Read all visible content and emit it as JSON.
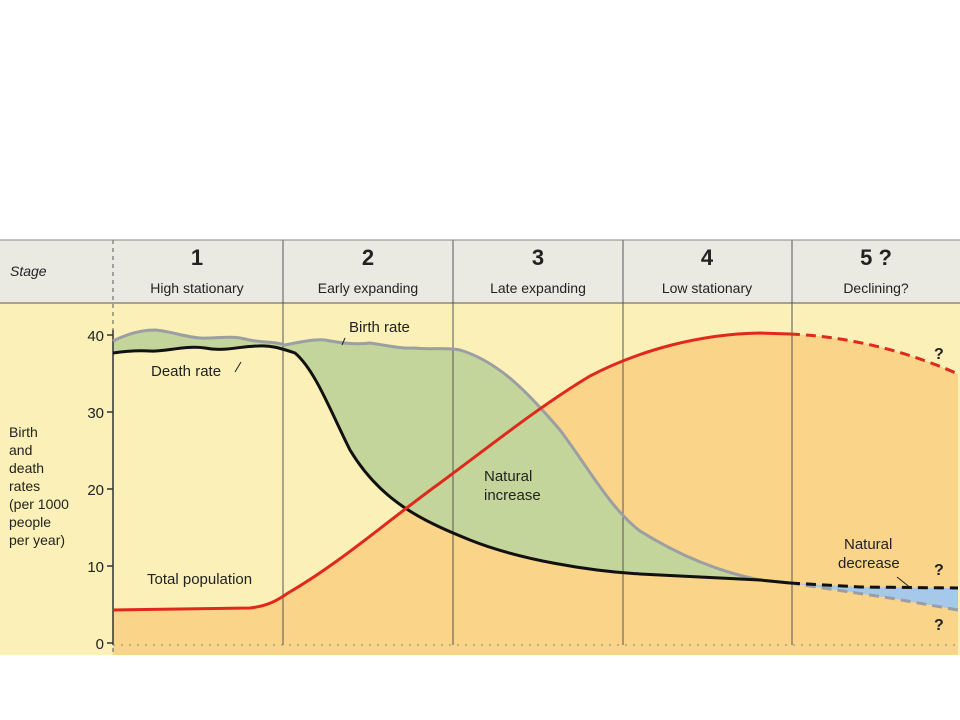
{
  "header": {
    "stage_label": "Stage",
    "stages": [
      {
        "number": "1",
        "name": "High stationary"
      },
      {
        "number": "2",
        "name": "Early expanding"
      },
      {
        "number": "3",
        "name": "Late expanding"
      },
      {
        "number": "4",
        "name": "Low stationary"
      },
      {
        "number": "5 ?",
        "name": "Declining?"
      }
    ]
  },
  "axis": {
    "y_label_lines": [
      "Birth",
      "and",
      "death",
      "rates",
      "(per 1000",
      "people",
      "per year)"
    ],
    "ticks": [
      "40",
      "30",
      "20",
      "10",
      "0"
    ]
  },
  "labels": {
    "birth_rate": "Birth rate",
    "death_rate": "Death rate",
    "natural_increase_1": "Natural",
    "natural_increase_2": "increase",
    "natural_decrease_1": "Natural",
    "natural_decrease_2": "decrease",
    "total_population": "Total population",
    "q_top": "?",
    "q_mid": "?",
    "q_bot": "?"
  },
  "colors": {
    "background": "#fbf0b8",
    "header_bg": "#ebeae2",
    "natural_increase_fill": "#c3d59a",
    "population_fill": "#fad488",
    "natural_decrease_fill": "#a6c8ea",
    "birth_line": "#9b9fa3",
    "death_line": "#111111",
    "population_line": "#e0291d"
  }
}
